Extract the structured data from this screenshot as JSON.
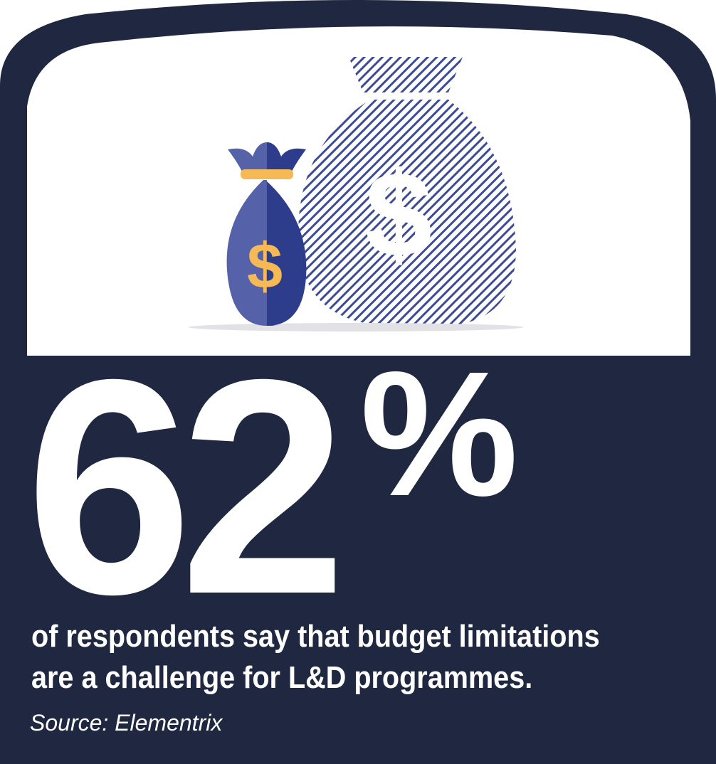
{
  "colors": {
    "background": "#1f2840",
    "panel": "#ffffff",
    "bag_light": "#5561a8",
    "bag_dark": "#2e3c8c",
    "bag_tie": "#f5b955",
    "dollar": "#f5b955",
    "hatch": "#3d4a95",
    "text": "#ffffff"
  },
  "icons": {
    "front": "money-bag-icon",
    "back": "money-bag-outline-icon"
  },
  "stat": {
    "number": "62",
    "percent": "%"
  },
  "caption": "of respondents say that budget limitations are a challenge for L&D programmes.",
  "source": "Source: Elementrix"
}
